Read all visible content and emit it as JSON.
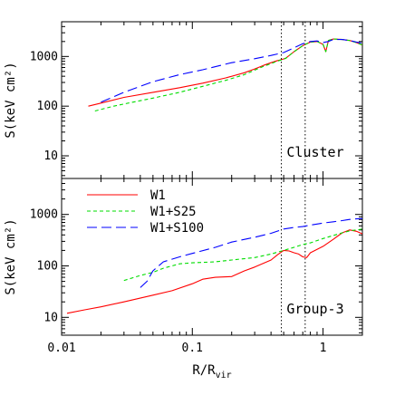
{
  "colors": {
    "W1": "#ff0000",
    "W1+S25": "#00dd00",
    "W1+S100": "#0000ff"
  },
  "chart_data": {
    "type": "line",
    "x_scale": "log",
    "y_scale": "log",
    "xlabel": "R/R",
    "xlabel_sub": "vir",
    "ylabel": "S(keV cm²)",
    "xlim": [
      0.01,
      2.0
    ],
    "x_ticks": [
      {
        "value": 0.01,
        "label": "0.01"
      },
      {
        "value": 0.1,
        "label": "0.1"
      },
      {
        "value": 1,
        "label": "1"
      }
    ],
    "legend": {
      "placement": "top-left of lower panel",
      "entries": [
        {
          "name": "W1",
          "style": "solid",
          "color_key": "W1"
        },
        {
          "name": "W1+S25",
          "style": "short-dash",
          "color_key": "W1+S25"
        },
        {
          "name": "W1+S100",
          "style": "long-dash",
          "color_key": "W1+S100"
        }
      ]
    },
    "panels": [
      {
        "label": "Cluster",
        "ylabel": "S(keV cm²)",
        "ylim": [
          3.5,
          5000
        ],
        "y_ticks": [
          {
            "value": 10,
            "label": "10"
          },
          {
            "value": 100,
            "label": "100"
          },
          {
            "value": 1000,
            "label": "1000"
          }
        ],
        "vlines": [
          0.48,
          0.73
        ],
        "series": [
          {
            "name": "W1",
            "style": "solid",
            "color_key": "W1",
            "x": [
              0.016,
              0.02,
              0.03,
              0.05,
              0.08,
              0.12,
              0.18,
              0.25,
              0.3,
              0.35,
              0.4,
              0.45,
              0.48,
              0.52,
              0.6,
              0.7,
              0.8,
              0.9,
              1.0,
              1.05,
              1.1,
              1.2,
              1.4,
              1.6,
              1.8,
              2.0
            ],
            "y": [
              100,
              115,
              150,
              190,
              235,
              290,
              370,
              470,
              560,
              660,
              750,
              830,
              860,
              930,
              1250,
              1650,
              1950,
              2000,
              1750,
              1250,
              2100,
              2250,
              2200,
              2100,
              1900,
              1700
            ]
          },
          {
            "name": "W1+S25",
            "style": "short-dash",
            "color_key": "W1+S25",
            "x": [
              0.018,
              0.025,
              0.035,
              0.05,
              0.08,
              0.12,
              0.18,
              0.25,
              0.3,
              0.35,
              0.4,
              0.45,
              0.48,
              0.52,
              0.6,
              0.7,
              0.8,
              0.9,
              1.0,
              1.05,
              1.1,
              1.2,
              1.4,
              1.6,
              1.8,
              2.0
            ],
            "y": [
              80,
              100,
              120,
              145,
              190,
              250,
              330,
              430,
              530,
              630,
              720,
              810,
              850,
              920,
              1250,
              1650,
              1950,
              2000,
              1750,
              1250,
              2100,
              2250,
              2200,
              2100,
              1900,
              1700
            ]
          },
          {
            "name": "W1+S100",
            "style": "long-dash",
            "color_key": "W1+S100",
            "x": [
              0.02,
              0.03,
              0.05,
              0.08,
              0.12,
              0.2,
              0.3,
              0.4,
              0.5,
              0.6,
              0.7,
              0.8,
              0.9,
              1.0,
              1.1,
              1.2,
              1.4,
              1.6,
              1.8,
              2.0
            ],
            "y": [
              120,
              190,
              310,
              430,
              540,
              750,
              900,
              1050,
              1200,
              1500,
              1800,
              2000,
              2050,
              1900,
              2000,
              2200,
              2200,
              2100,
              1950,
              1850
            ]
          }
        ]
      },
      {
        "label": "Group-3",
        "ylabel": "S(keV cm²)",
        "ylim": [
          4.5,
          5000
        ],
        "y_ticks": [
          {
            "value": 10,
            "label": "10"
          },
          {
            "value": 100,
            "label": "100"
          },
          {
            "value": 1000,
            "label": "1000"
          }
        ],
        "vlines": [
          0.48,
          0.73
        ],
        "series": [
          {
            "name": "W1",
            "style": "solid",
            "color_key": "W1",
            "x": [
              0.011,
              0.015,
              0.02,
              0.03,
              0.05,
              0.07,
              0.1,
              0.12,
              0.15,
              0.2,
              0.25,
              0.3,
              0.4,
              0.45,
              0.5,
              0.55,
              0.6,
              0.65,
              0.7,
              0.75,
              0.8,
              1.0,
              1.2,
              1.4,
              1.6,
              1.8,
              2.0
            ],
            "y": [
              12,
              14,
              16,
              20,
              27,
              33,
              45,
              55,
              60,
              62,
              80,
              95,
              130,
              165,
              200,
              195,
              180,
              170,
              150,
              145,
              180,
              240,
              330,
              440,
              500,
              470,
              420
            ]
          },
          {
            "name": "W1+S25",
            "style": "short-dash",
            "color_key": "W1+S25",
            "x": [
              0.03,
              0.04,
              0.05,
              0.06,
              0.08,
              0.1,
              0.15,
              0.2,
              0.3,
              0.4,
              0.5,
              0.6,
              0.7,
              0.8,
              1.0,
              1.2,
              1.4,
              1.6,
              1.8,
              2.0
            ],
            "y": [
              52,
              65,
              75,
              90,
              110,
              115,
              120,
              130,
              145,
              170,
              200,
              230,
              260,
              280,
              340,
              390,
              440,
              480,
              500,
              520
            ]
          },
          {
            "name": "W1+S100",
            "style": "long-dash",
            "color_key": "W1+S100",
            "x": [
              0.04,
              0.045,
              0.05,
              0.06,
              0.08,
              0.1,
              0.15,
              0.2,
              0.3,
              0.4,
              0.5,
              0.6,
              0.7,
              0.8,
              1.0,
              1.2,
              1.4,
              1.6,
              1.8,
              2.0
            ],
            "y": [
              38,
              50,
              80,
              120,
              150,
              175,
              230,
              290,
              360,
              430,
              520,
              560,
              580,
              620,
              680,
              720,
              760,
              800,
              820,
              830
            ]
          }
        ]
      }
    ]
  }
}
